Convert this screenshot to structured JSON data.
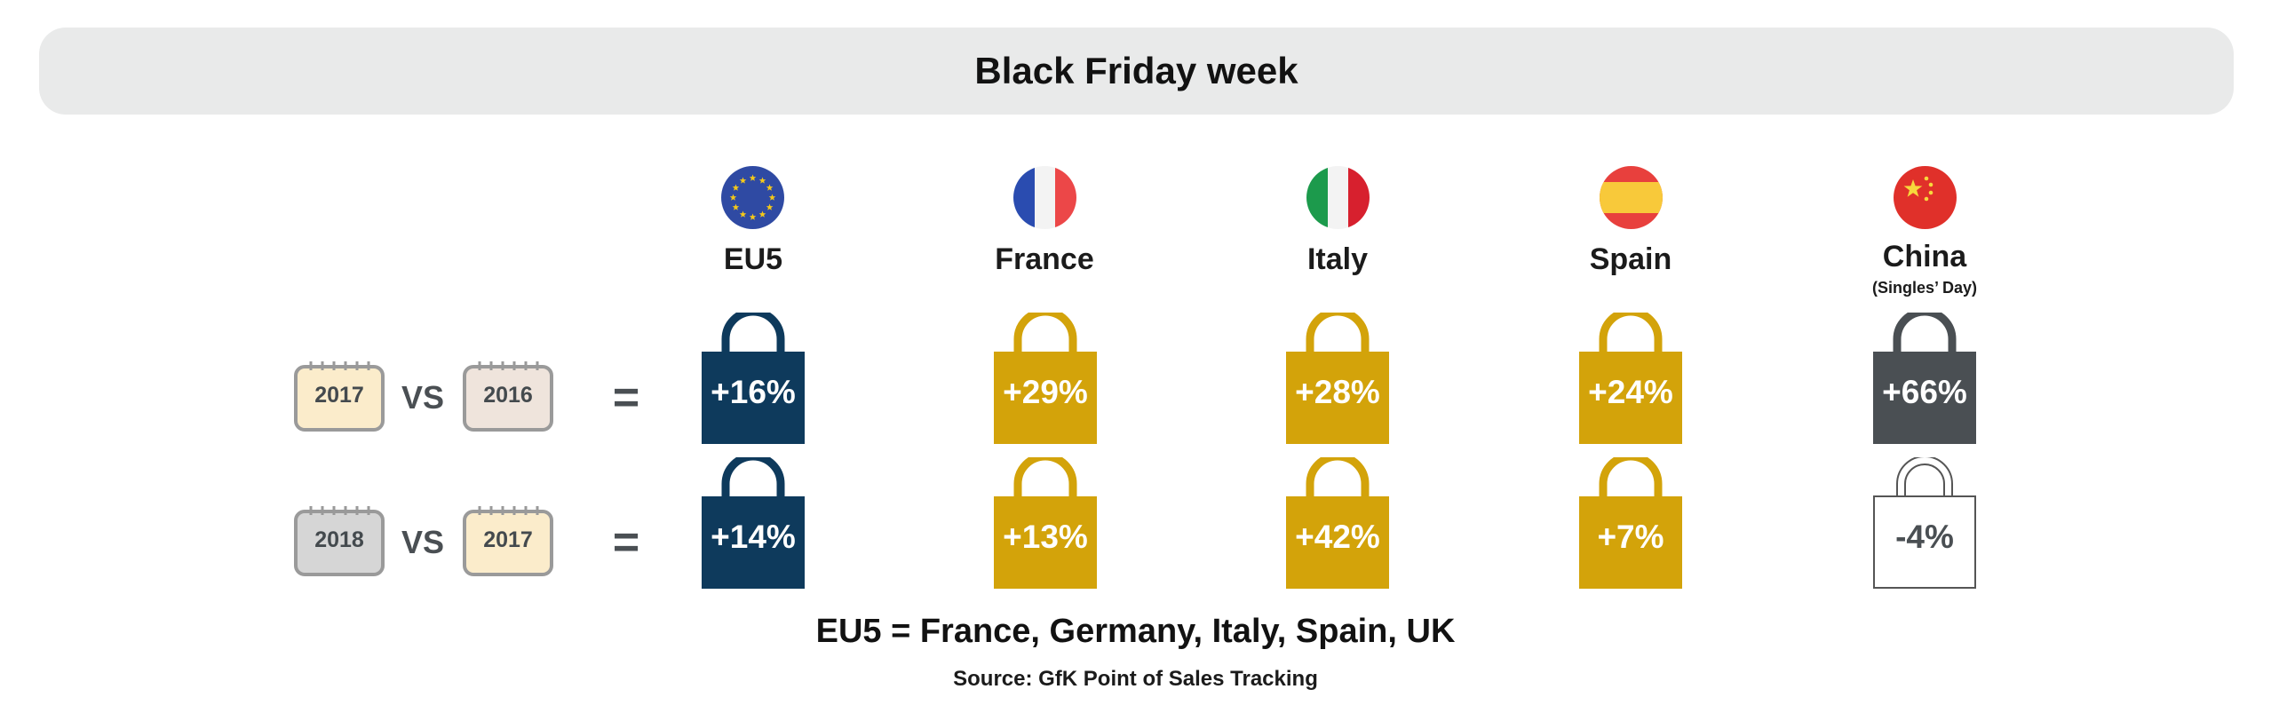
{
  "title": "Black Friday week",
  "colors": {
    "eu5": "#0e3a5c",
    "country": "#d3a30a",
    "china_positive": "#4a4f53",
    "china_negative_outline": "#555555",
    "title_bg": "#e9eaea"
  },
  "columns": [
    {
      "name": "EU5",
      "subtitle": "",
      "flag_icon": "eu-flag-icon"
    },
    {
      "name": "France",
      "subtitle": "",
      "flag_icon": "france-flag-icon"
    },
    {
      "name": "Italy",
      "subtitle": "",
      "flag_icon": "italy-flag-icon"
    },
    {
      "name": "Spain",
      "subtitle": "",
      "flag_icon": "spain-flag-icon"
    },
    {
      "name": "China",
      "subtitle": "(Singles’ Day)",
      "flag_icon": "china-flag-icon"
    }
  ],
  "comparisons": [
    {
      "year_a": "2017",
      "vs": "VS",
      "year_b": "2016",
      "equals": "="
    },
    {
      "year_a": "2018",
      "vs": "VS",
      "year_b": "2017",
      "equals": "="
    }
  ],
  "values": [
    [
      "+16%",
      "+29%",
      "+28%",
      "+24%",
      "+66%"
    ],
    [
      "+14%",
      "+13%",
      "+42%",
      "+7%",
      "-4%"
    ]
  ],
  "footnote": "EU5 = France, Germany, Italy, Spain, UK",
  "source": "Source: GfK Point of Sales Tracking",
  "chart_data": {
    "type": "table",
    "title": "Black Friday week",
    "columns": [
      "EU5",
      "France",
      "Italy",
      "Spain",
      "China (Singles’ Day)"
    ],
    "rows": [
      {
        "label": "2017 VS 2016",
        "values": [
          16,
          29,
          28,
          24,
          66
        ]
      },
      {
        "label": "2018 VS 2017",
        "values": [
          14,
          13,
          42,
          7,
          -4
        ]
      }
    ],
    "unit": "%"
  }
}
